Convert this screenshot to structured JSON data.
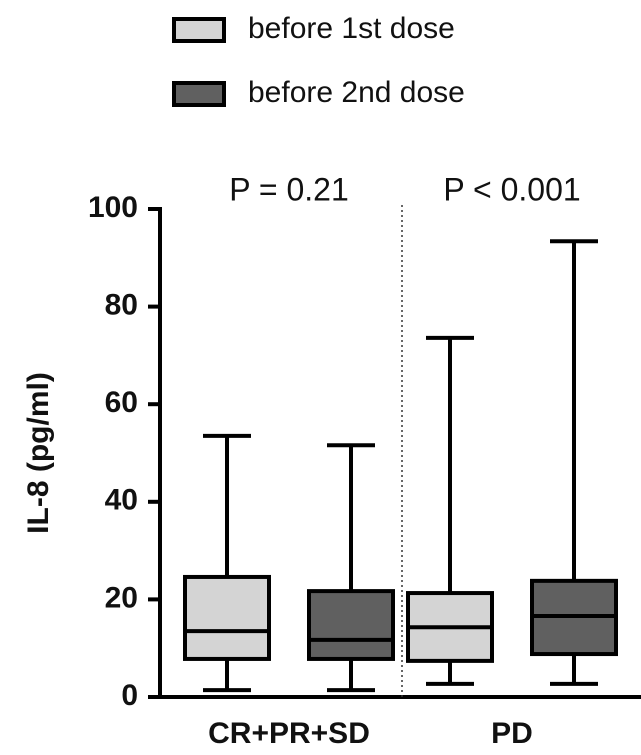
{
  "chart_data": {
    "type": "box",
    "y_label": "IL-8 (pg/ml)",
    "categories": [
      "CR+PR+SD",
      "PD"
    ],
    "annotations": [
      "P = 0.21",
      "P < 0.001"
    ],
    "series": [
      {
        "name": "before 1st dose",
        "color": "#d4d4d4",
        "values": [
          {
            "min": 1.4,
            "q1": 7.8,
            "median": 13.5,
            "q3": 24.6,
            "max": 53.5
          },
          {
            "min": 2.7,
            "q1": 7.4,
            "median": 14.3,
            "q3": 21.3,
            "max": 73.6
          }
        ]
      },
      {
        "name": "before 2nd dose",
        "color": "#606060",
        "values": [
          {
            "min": 1.4,
            "q1": 7.8,
            "median": 11.7,
            "q3": 21.7,
            "max": 51.6
          },
          {
            "min": 2.7,
            "q1": 8.8,
            "median": 16.6,
            "q3": 23.8,
            "max": 93.4
          }
        ]
      }
    ],
    "ylim": [
      0,
      100
    ],
    "yticks": [
      0,
      20,
      40,
      60,
      80,
      100
    ]
  }
}
